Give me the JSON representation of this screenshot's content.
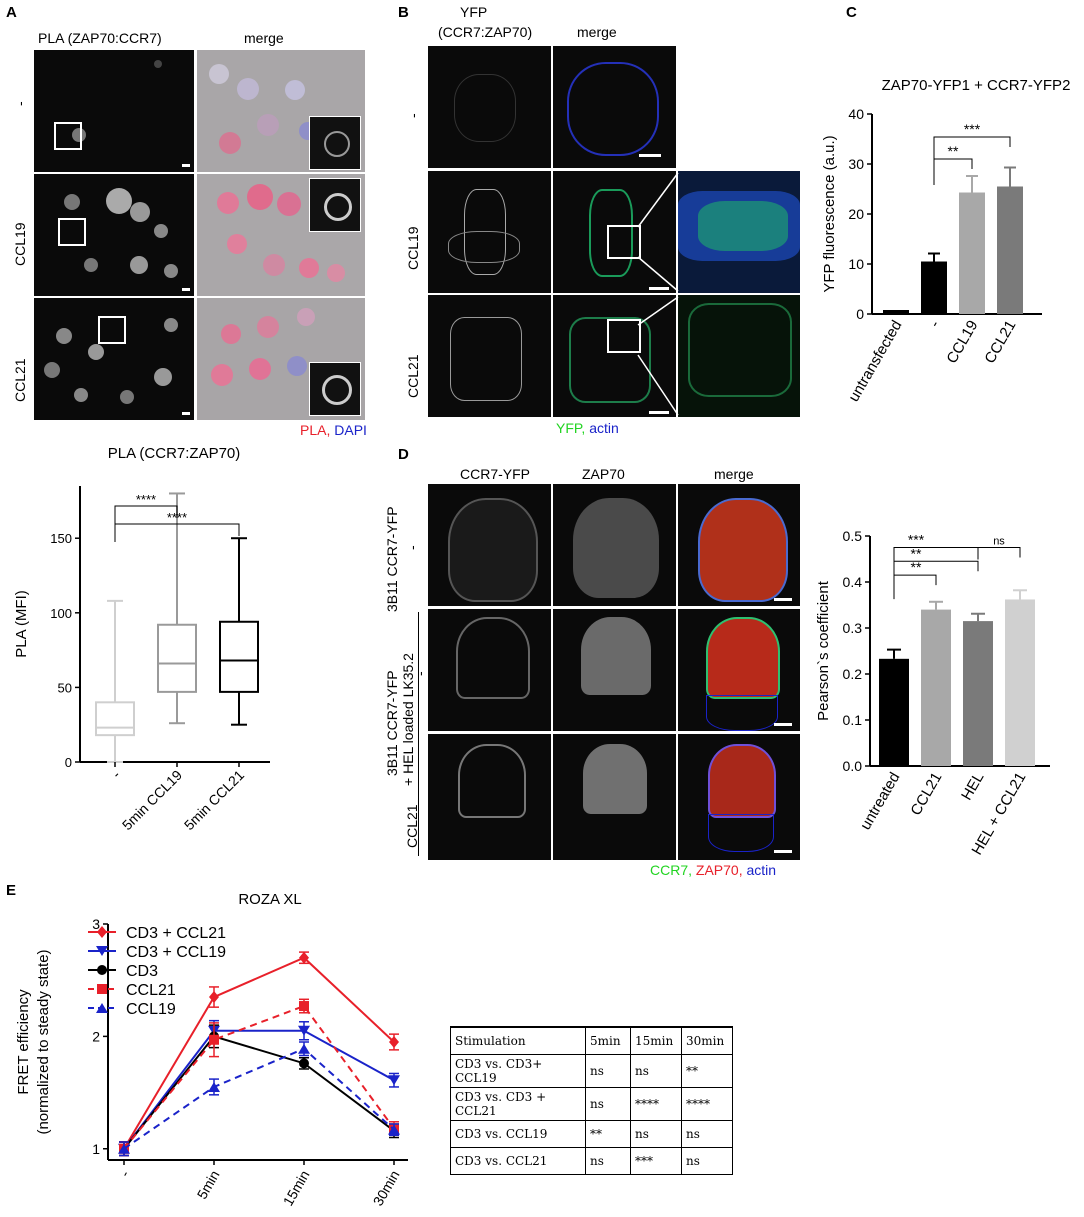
{
  "panelA": {
    "letter": "A",
    "col_headers": [
      "PLA (ZAP70:CCR7)",
      "merge"
    ],
    "row_labels": [
      "-",
      "CCL19",
      "CCL21"
    ],
    "legend": {
      "pla": "PLA,",
      "dapi": "DAPI"
    },
    "colors": {
      "pla": "#e8202a",
      "dapi": "#1a23c9"
    }
  },
  "panelB": {
    "letter": "B",
    "col_headers": [
      "YFP\n(CCR7:ZAP70)",
      "merge"
    ],
    "col_header_yfp_line1": "YFP",
    "col_header_yfp_line2": "(CCR7:ZAP70)",
    "col_header_merge": "merge",
    "row_labels": [
      "-",
      "CCL19",
      "CCL21"
    ],
    "legend": {
      "yfp": "YFP,",
      "actin": "actin"
    },
    "colors": {
      "yfp": "#22d422",
      "actin": "#1a23c9"
    }
  },
  "panelD": {
    "letter": "D",
    "col_headers": [
      "CCR7-YFP",
      "ZAP70",
      "merge"
    ],
    "row_labels": [
      "-",
      "-",
      "CCL21"
    ],
    "group_labels": [
      "3B11 CCR7-YFP",
      "3B11 CCR7-YFP",
      "+ HEL loaded LK35.2"
    ],
    "legend": {
      "ccr7": "CCR7,",
      "zap70": "ZAP70,",
      "actin": "actin"
    },
    "colors": {
      "ccr7": "#22d422",
      "zap70": "#e8202a",
      "actin": "#1a23c9"
    }
  },
  "panelE": {
    "letter": "E",
    "table": {
      "header": [
        "Stimulation",
        "5min",
        "15min",
        "30min"
      ],
      "rows": [
        [
          "CD3 vs. CD3+ CCL19",
          "ns",
          "ns",
          "**"
        ],
        [
          "CD3 vs. CD3 + CCL21",
          "ns",
          "****",
          "****"
        ],
        [
          "CD3 vs. CCL19",
          "**",
          "ns",
          "ns"
        ],
        [
          "CD3 vs. CCL21",
          "ns",
          "***",
          "ns"
        ]
      ]
    }
  },
  "chart_data": [
    {
      "id": "A-box",
      "type": "box",
      "title": "PLA (CCR7:ZAP70)",
      "ylabel": "PLA (MFI)",
      "ylim": [
        0,
        185
      ],
      "yticks": [
        0,
        50,
        100,
        150
      ],
      "categories": [
        "-",
        "5min CCL19",
        "5min CCL21"
      ],
      "boxes": [
        {
          "min": 0,
          "q1": 18,
          "median": 23,
          "q3": 40,
          "max": 108,
          "color": "#cfcfcf"
        },
        {
          "min": 26,
          "q1": 47,
          "median": 66,
          "q3": 92,
          "max": 180,
          "color": "#9a9a9a"
        },
        {
          "min": 25,
          "q1": 47,
          "median": 68,
          "q3": 94,
          "max": 150,
          "color": "#000000"
        }
      ],
      "significance": [
        {
          "from": 0,
          "to": 1,
          "label": "****"
        },
        {
          "from": 0,
          "to": 2,
          "label": "****"
        }
      ]
    },
    {
      "id": "C-bar",
      "type": "bar",
      "title": "ZAP70-YFP1 + CCR7-YFP2",
      "ylabel": "YFP fluorescence (a.u.)",
      "ylim": [
        0,
        40
      ],
      "yticks": [
        0,
        10,
        20,
        30,
        40
      ],
      "categories": [
        "untransfected",
        "-",
        "CCL19",
        "CCL21"
      ],
      "values": [
        0.8,
        10.5,
        24.3,
        25.5
      ],
      "errors": [
        0,
        1.6,
        3.3,
        3.8
      ],
      "colors": [
        "#000000",
        "#000000",
        "#a8a8a8",
        "#7a7a7a"
      ],
      "significance": [
        {
          "from": 1,
          "to": 2,
          "label": "**"
        },
        {
          "from": 1,
          "to": 3,
          "label": "***"
        }
      ]
    },
    {
      "id": "D-bar",
      "type": "bar",
      "ylabel": "Pearson`s coefficient",
      "ylim": [
        0,
        0.5
      ],
      "yticks": [
        "0.0",
        "0.1",
        "0.2",
        "0.3",
        "0.4",
        "0.5"
      ],
      "categories": [
        "untreated",
        "CCL21",
        "HEL",
        "HEL + CCL21"
      ],
      "values": [
        0.233,
        0.34,
        0.315,
        0.362
      ],
      "errors": [
        0.02,
        0.017,
        0.016,
        0.02
      ],
      "colors": [
        "#000000",
        "#a8a8a8",
        "#7a7a7a",
        "#d0d0d0"
      ],
      "significance": [
        {
          "from": 0,
          "to": 1,
          "label": "**"
        },
        {
          "from": 0,
          "to": 2,
          "label": "**"
        },
        {
          "from": 0,
          "to": 3,
          "label": "***"
        },
        {
          "from": 2,
          "to": 3,
          "label": "ns"
        }
      ]
    },
    {
      "id": "E-line",
      "type": "line",
      "title": "ROZA XL",
      "ylabel": "FRET efficiency",
      "ylabel2": "(normalized to steady state)",
      "ylim": [
        0.9,
        3.0
      ],
      "yticks": [
        1,
        2,
        3
      ],
      "categories": [
        "-",
        "5min",
        "15min",
        "30min"
      ],
      "series": [
        {
          "name": "CD3 + CCL21",
          "values": [
            1.0,
            2.35,
            2.7,
            1.95
          ],
          "errors": [
            0.06,
            0.09,
            0.05,
            0.07
          ],
          "color": "#e8202a",
          "dashed": false,
          "marker": "diamond"
        },
        {
          "name": "CD3 + CCL19",
          "values": [
            1.0,
            2.05,
            2.05,
            1.61
          ],
          "errors": [
            0.06,
            0.09,
            0.08,
            0.06
          ],
          "color": "#1a23c9",
          "dashed": false,
          "marker": "triangle-down"
        },
        {
          "name": "CD3",
          "values": [
            1.0,
            2.0,
            1.76,
            1.16
          ],
          "errors": [
            0.06,
            0.1,
            0.05,
            0.06
          ],
          "color": "#000000",
          "dashed": false,
          "marker": "circle"
        },
        {
          "name": "CCL21",
          "values": [
            1.0,
            1.97,
            2.27,
            1.18
          ],
          "errors": [
            0.06,
            0.15,
            0.06,
            0.06
          ],
          "color": "#e8202a",
          "dashed": true,
          "marker": "square"
        },
        {
          "name": "CCL19",
          "values": [
            1.0,
            1.55,
            1.89,
            1.17
          ],
          "errors": [
            0.06,
            0.07,
            0.06,
            0.05
          ],
          "color": "#1a23c9",
          "dashed": true,
          "marker": "triangle-up"
        }
      ]
    }
  ]
}
